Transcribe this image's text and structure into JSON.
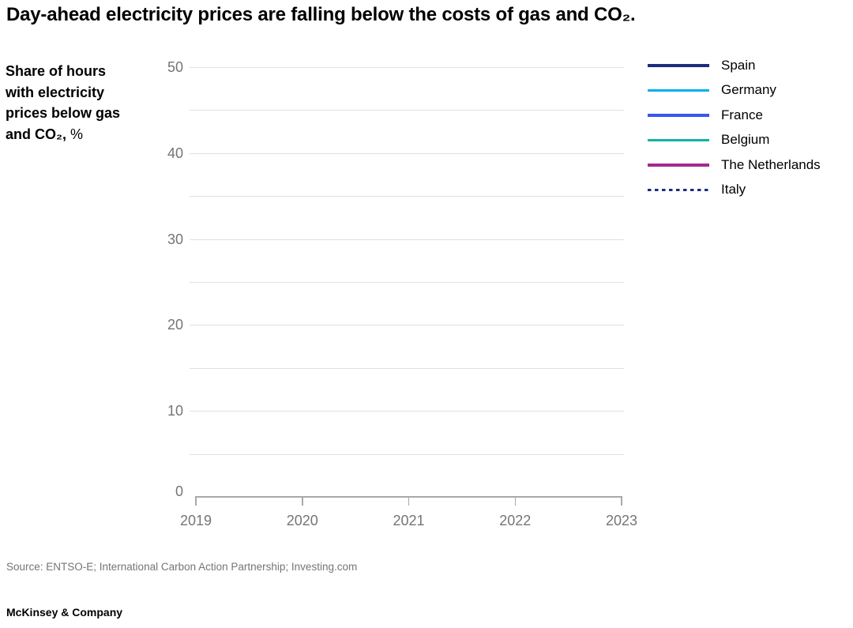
{
  "header": {
    "title": "Day-ahead electricity prices are falling below the costs of gas and CO₂."
  },
  "y_axis_title": {
    "bold_lines": [
      "Share of hours",
      "with electricity",
      "prices below gas",
      "and CO₂,"
    ],
    "unit_suffix": "%"
  },
  "footer": {
    "source": "Source: ENTSO-E; International Carbon Action Partnership; Investing.com",
    "brand": "McKinsey & Company"
  },
  "colors": {
    "title_text": "#000000",
    "axis_text": "#757575",
    "gridline": "#E1E1E1",
    "axis_line": "#A9A9A9",
    "source_text": "#757575"
  },
  "chart_data": {
    "type": "line",
    "title": "Day-ahead electricity prices are falling below the costs of gas and CO₂.",
    "ylabel": "Share of hours with electricity prices below gas and CO₂, %",
    "x_tick_labels": [
      "2019",
      "2020",
      "2021",
      "2022",
      "2023"
    ],
    "ylim": [
      0,
      50
    ],
    "y_major_ticks": [
      0,
      10,
      20,
      30,
      40,
      50
    ],
    "y_gridline_step": 5,
    "grid": true,
    "legend_position": "top-right",
    "plot_area_empty": true,
    "series": [
      {
        "name": "Spain",
        "color": "#1C2D7F",
        "style": "solid",
        "values": []
      },
      {
        "name": "Germany",
        "color": "#00AFF0",
        "style": "solid",
        "values": []
      },
      {
        "name": "France",
        "color": "#3657F0",
        "style": "solid",
        "values": []
      },
      {
        "name": "Belgium",
        "color": "#12B2A8",
        "style": "solid",
        "values": []
      },
      {
        "name": "The Netherlands",
        "color": "#A5298F",
        "style": "solid",
        "values": []
      },
      {
        "name": "Italy",
        "color": "#1C2D7F",
        "style": "dotted",
        "values": []
      }
    ]
  }
}
